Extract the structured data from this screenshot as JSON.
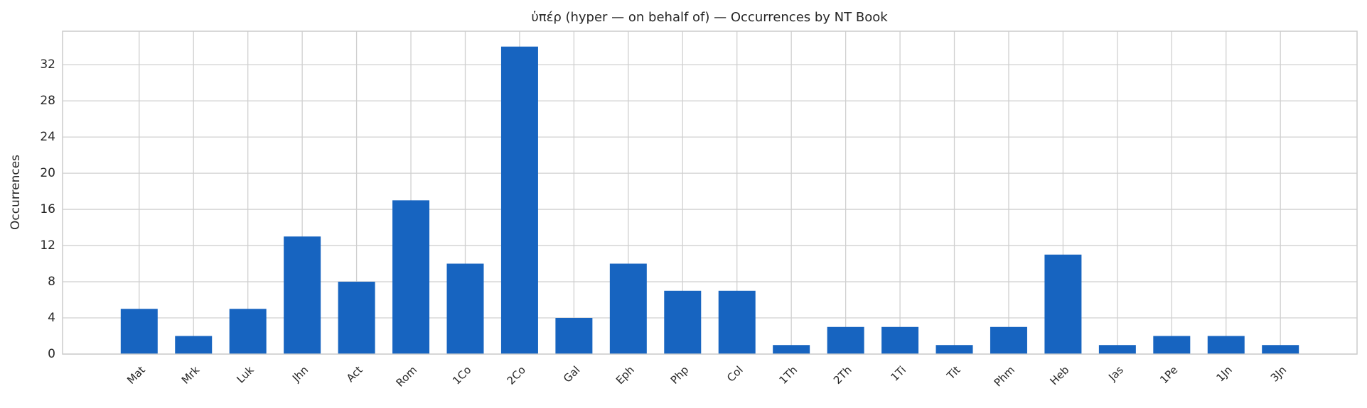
{
  "chart_data": {
    "type": "bar",
    "title": "ὑπέρ (hyper — on behalf of) — Occurrences by NT Book",
    "y_label": "Occurrences",
    "categories": [
      "Mat",
      "Mrk",
      "Luk",
      "Jhn",
      "Act",
      "Rom",
      "1Co",
      "2Co",
      "Gal",
      "Eph",
      "Php",
      "Col",
      "1Th",
      "2Th",
      "1Ti",
      "Tit",
      "Phm",
      "Heb",
      "Jas",
      "1Pe",
      "1Jn",
      "3Jn"
    ],
    "values": [
      5,
      2,
      5,
      13,
      8,
      17,
      10,
      34,
      4,
      10,
      7,
      7,
      1,
      3,
      3,
      1,
      3,
      11,
      1,
      2,
      2,
      1
    ],
    "color": "#1764c0",
    "ylim": [
      0,
      35.7
    ],
    "yticks": [
      0,
      4,
      8,
      12,
      16,
      20,
      24,
      28,
      32
    ],
    "grid": true
  }
}
